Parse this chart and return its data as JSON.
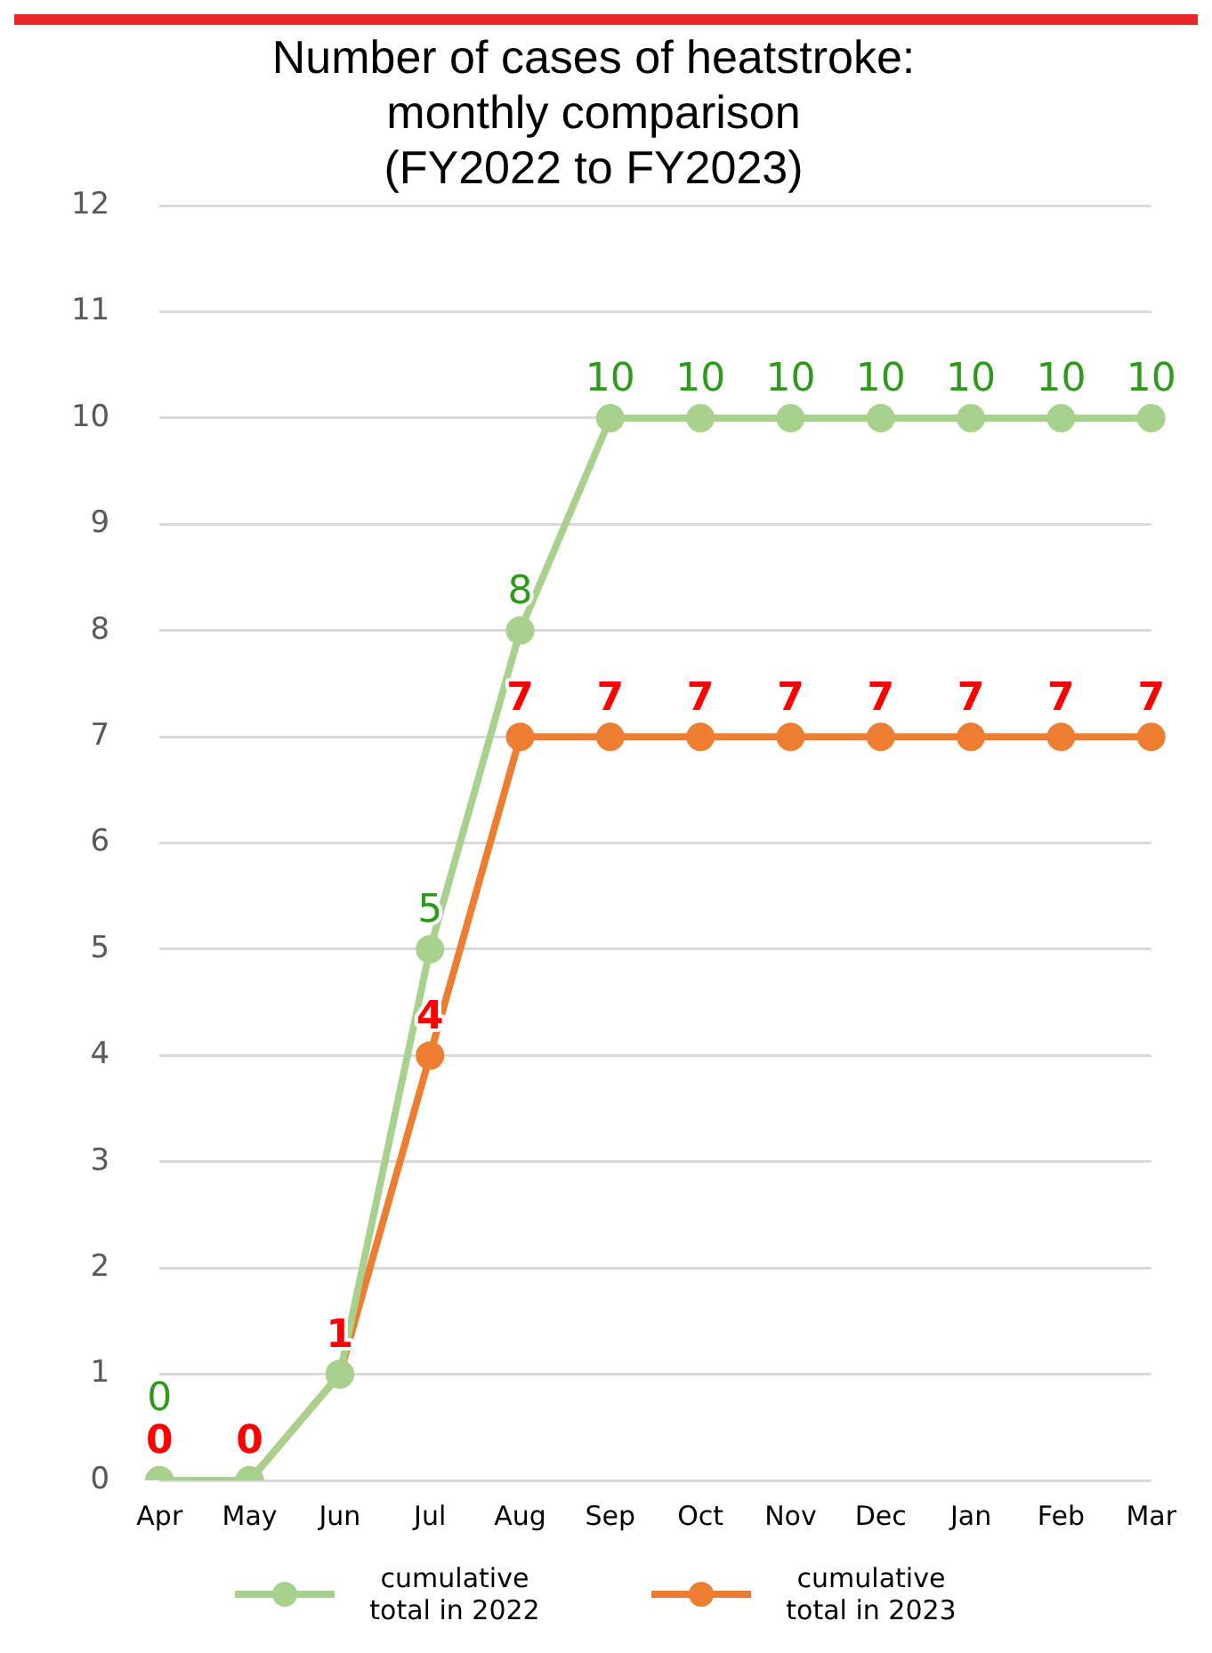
{
  "chart_data": {
    "type": "line",
    "title": "Number of cases of heatstroke:\nmonthly comparison\n(FY2022 to FY2023)",
    "categories": [
      "Apr",
      "May",
      "Jun",
      "Jul",
      "Aug",
      "Sep",
      "Oct",
      "Nov",
      "Dec",
      "Jan",
      "Feb",
      "Mar"
    ],
    "series": [
      {
        "name": "cumulative total in 2022",
        "color": "#a9d18e",
        "values": [
          0,
          0,
          1,
          5,
          8,
          10,
          10,
          10,
          10,
          10,
          10,
          10
        ],
        "value_labels": [
          "0",
          null,
          null,
          "5",
          "8",
          "10",
          "10",
          "10",
          "10",
          "10",
          "10",
          "10"
        ]
      },
      {
        "name": "cumulative total in 2023",
        "color": "#ed7d31",
        "values": [
          0,
          0,
          1,
          4,
          7,
          7,
          7,
          7,
          7,
          7,
          7,
          7
        ],
        "value_labels": [
          "0",
          "0",
          "1",
          "4",
          "7",
          "7",
          "7",
          "7",
          "7",
          "7",
          "7",
          "7"
        ]
      }
    ],
    "ylim": [
      0,
      12
    ],
    "yticks": [
      0,
      1,
      2,
      3,
      4,
      5,
      6,
      7,
      8,
      9,
      10,
      11,
      12
    ],
    "grid": "y",
    "legend": "bottom",
    "marker": "circle",
    "line_style": "solid"
  }
}
